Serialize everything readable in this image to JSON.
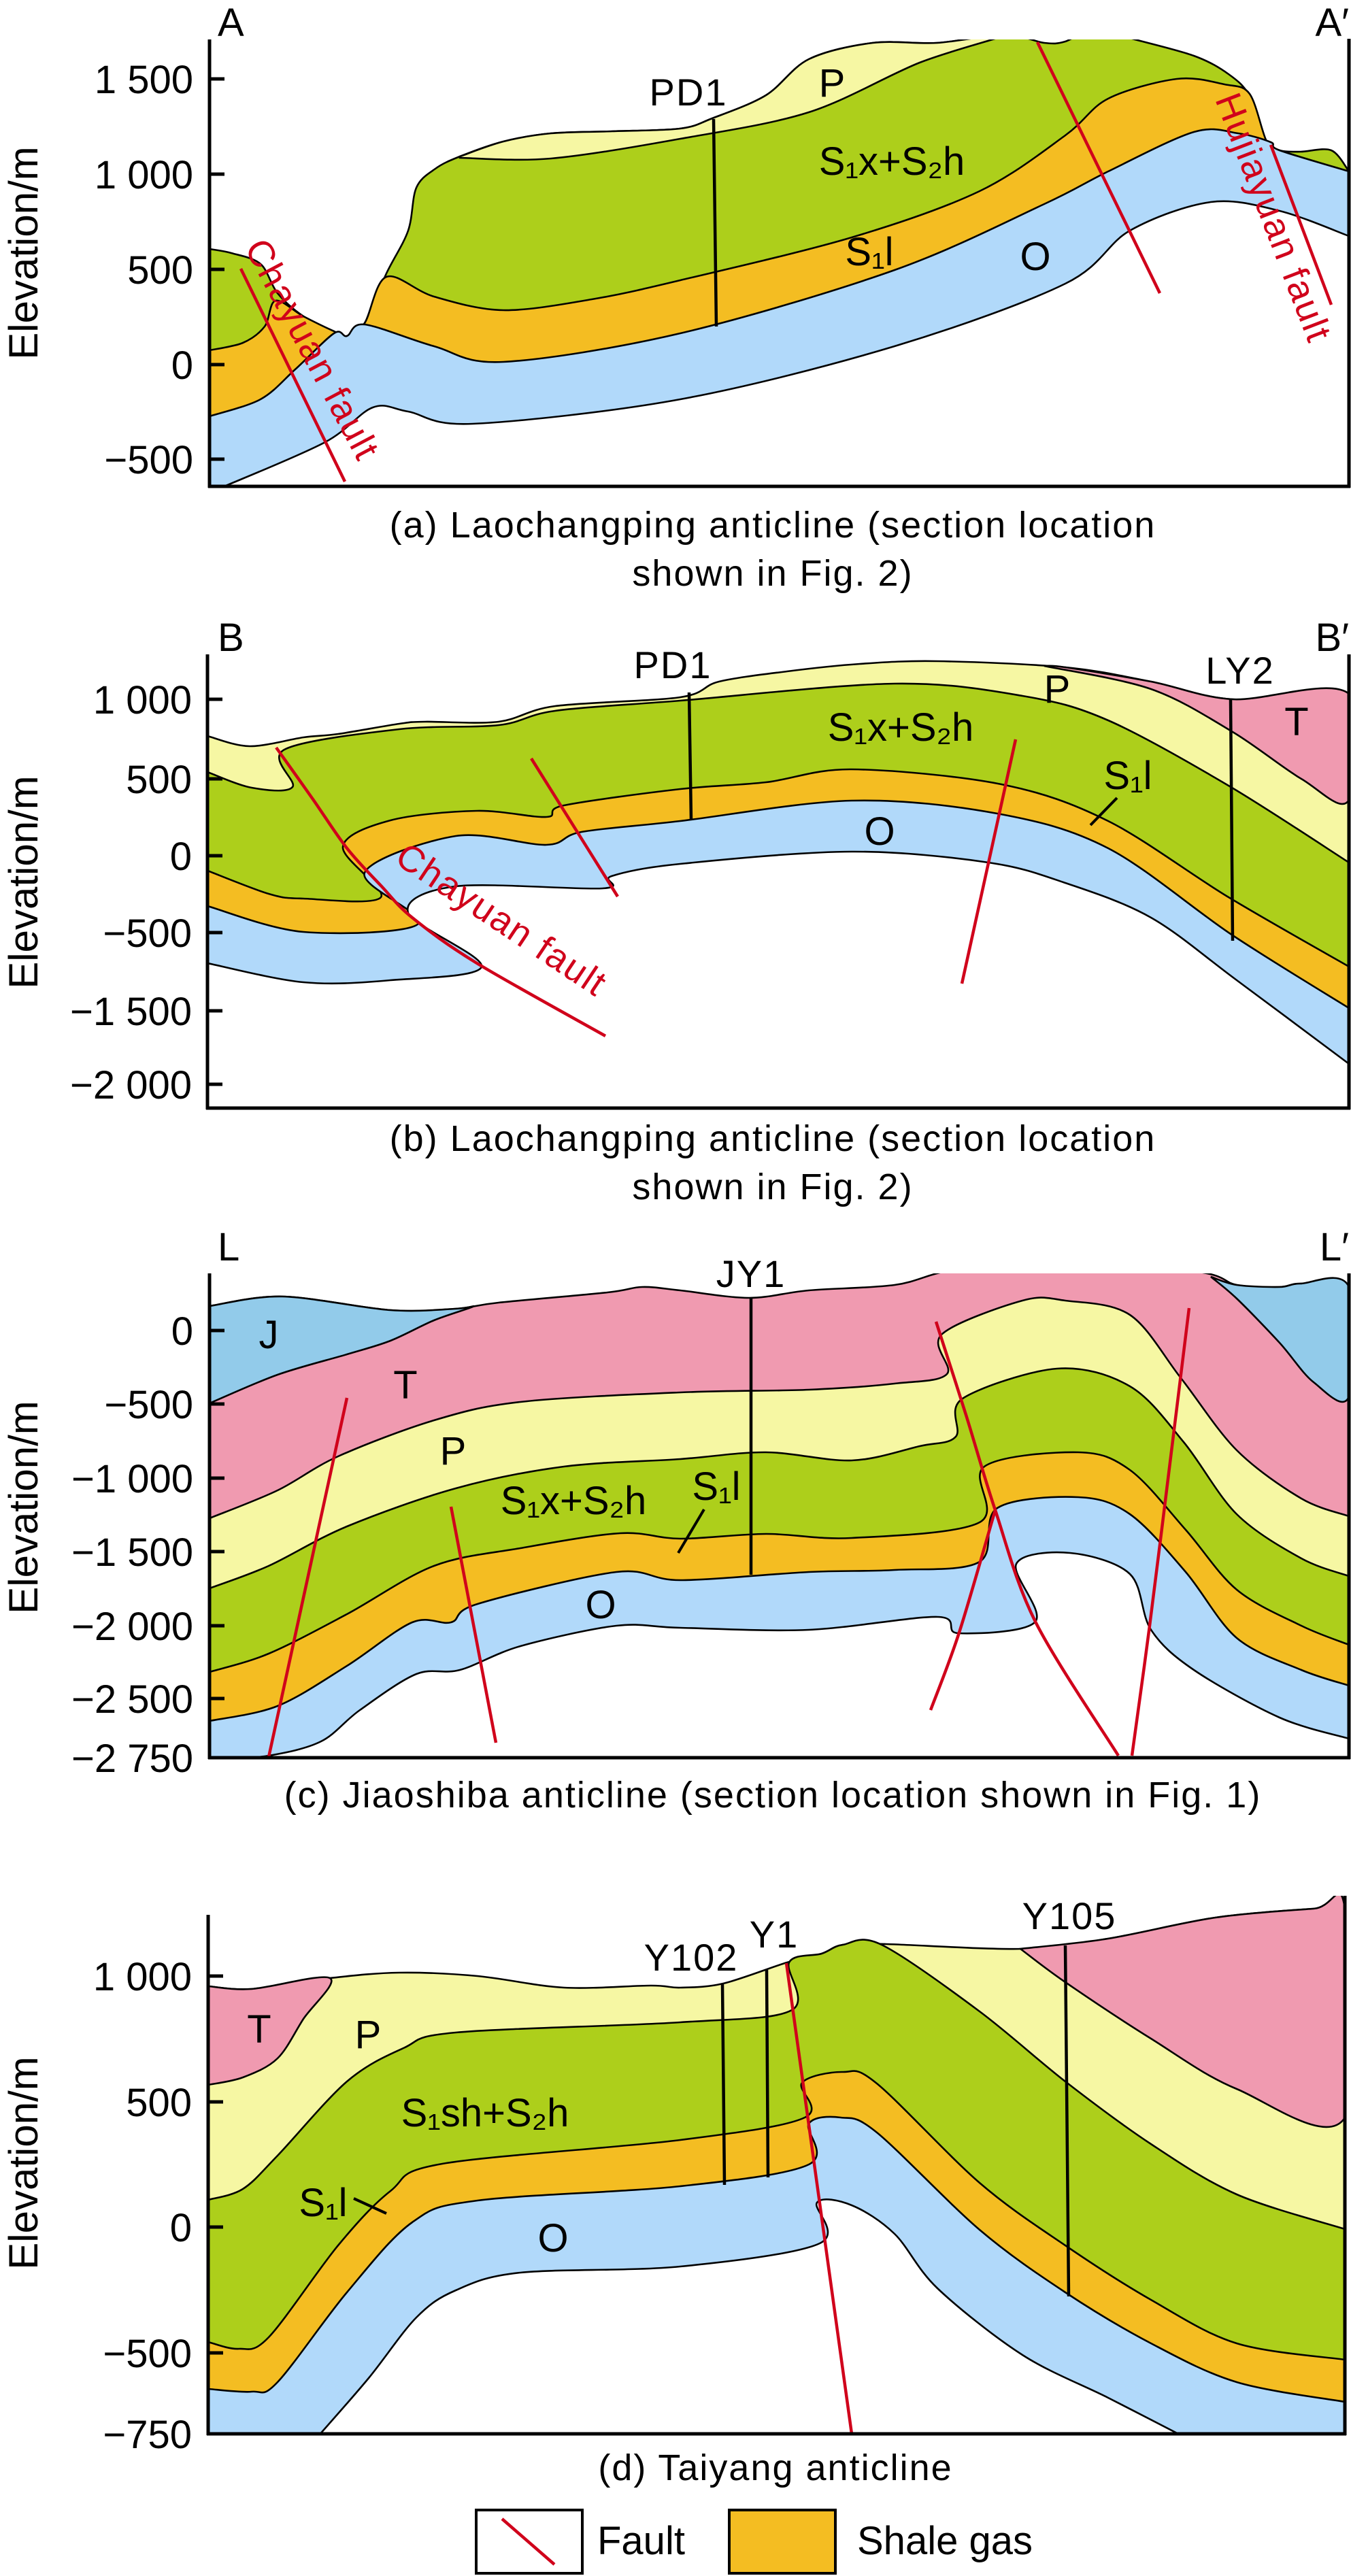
{
  "colors": {
    "green": "#adcf1b",
    "yellow": "#f6f7a3",
    "orange": "#f4bd22",
    "blue": "#b1d9fa",
    "pink": "#f09ab0",
    "jblue": "#92cbea",
    "white": "#ffffff",
    "fault_red": "#d0021b"
  },
  "y_axis_title": "Elevation/m",
  "panels": [
    {
      "start_label": "A",
      "end_label": "A′",
      "ticks": [
        "1 500",
        "1 000",
        "500",
        "0",
        "−500"
      ],
      "wells": [
        "PD1"
      ],
      "units": {
        "P": "P",
        "silurian": "S₁x+S₂h",
        "s1l": "S₁l",
        "O": "O"
      },
      "faults": [
        "Chayuan fault",
        "Hujiayuan fault"
      ],
      "caption": [
        "(a) Laochangping anticline (section location",
        "shown in Fig. 2)"
      ]
    },
    {
      "start_label": "B",
      "end_label": "B′",
      "ticks": [
        "1 000",
        "500",
        "0",
        "−500",
        "−1 500",
        "−2 000"
      ],
      "wells": [
        "PD1",
        "LY2"
      ],
      "units": {
        "P": "P",
        "T": "T",
        "silurian": "S₁x+S₂h",
        "s1l": "S₁l",
        "O": "O"
      },
      "faults": [
        "Chayuan fault"
      ],
      "caption": [
        "(b) Laochangping anticline (section location",
        "shown in Fig. 2)"
      ]
    },
    {
      "start_label": "L",
      "end_label": "L′",
      "ticks": [
        "0",
        "−500",
        "−1 000",
        "−1 500",
        "−2 000",
        "−2 500",
        "−2 750"
      ],
      "wells": [
        "JY1"
      ],
      "units": {
        "J": "J",
        "T": "T",
        "P": "P",
        "silurian": "S₁x+S₂h",
        "s1l": "S₁l",
        "O": "O"
      },
      "caption": [
        "(c) Jiaoshiba anticline (section location shown in Fig. 1)"
      ]
    },
    {
      "ticks": [
        "1 000",
        "500",
        "0",
        "−500",
        "−750"
      ],
      "wells": [
        "Y102",
        "Y1",
        "Y105"
      ],
      "units": {
        "T": "T",
        "P": "P",
        "silurian": "S₁sh+S₂h",
        "s1l": "S₁l",
        "O": "O"
      },
      "caption": [
        "(d) Taiyang anticline"
      ]
    }
  ],
  "legend": [
    {
      "label": "Fault",
      "icon": "red-fault-line"
    },
    {
      "label": "Shale gas",
      "icon": "orange-swatch"
    }
  ]
}
